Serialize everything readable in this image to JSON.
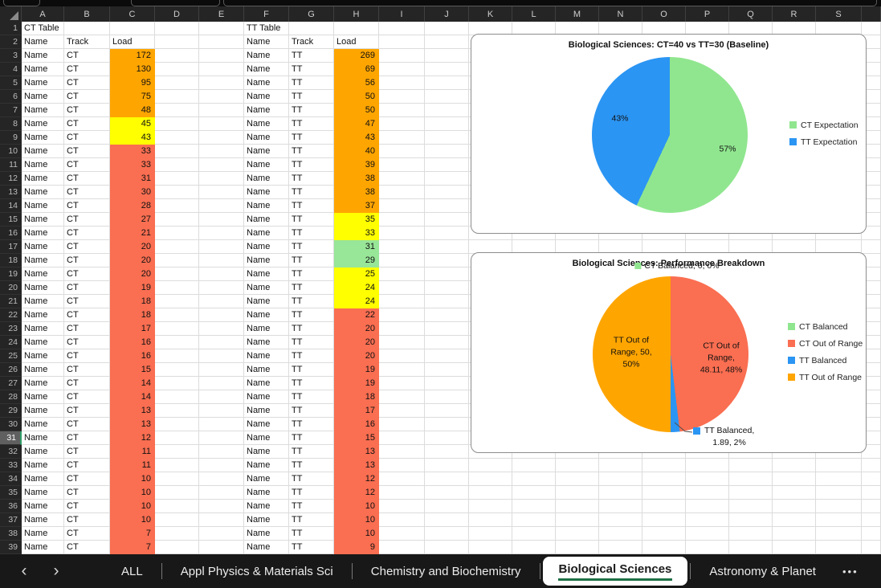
{
  "grid": {
    "column_letters": [
      "A",
      "B",
      "C",
      "D",
      "E",
      "F",
      "G",
      "H",
      "I",
      "J",
      "K",
      "L",
      "M",
      "N",
      "O",
      "P",
      "Q",
      "R",
      "S"
    ],
    "row_count": 39,
    "selected_row": 31,
    "ct_table": {
      "title": "CT Table",
      "col_headers": [
        "Name",
        "Track",
        "Load"
      ],
      "name_value": "Name",
      "track_value": "CT",
      "loads": [
        172,
        130,
        95,
        75,
        48,
        45,
        43,
        33,
        33,
        31,
        30,
        28,
        27,
        21,
        20,
        20,
        20,
        19,
        18,
        18,
        17,
        16,
        16,
        15,
        14,
        14,
        13,
        13,
        12,
        11,
        11,
        10,
        10,
        10,
        10,
        7,
        7
      ],
      "fills": [
        "o",
        "o",
        "o",
        "o",
        "o",
        "y",
        "y",
        "r",
        "r",
        "r",
        "r",
        "r",
        "r",
        "r",
        "r",
        "r",
        "r",
        "r",
        "r",
        "r",
        "r",
        "r",
        "r",
        "r",
        "r",
        "r",
        "r",
        "r",
        "r",
        "r",
        "r",
        "r",
        "r",
        "r",
        "r",
        "r",
        "r"
      ]
    },
    "tt_table": {
      "title": "TT Table",
      "col_headers": [
        "Name",
        "Track",
        "Load"
      ],
      "name_value": "Name",
      "track_value": "TT",
      "loads": [
        269,
        69,
        56,
        50,
        50,
        47,
        43,
        40,
        39,
        38,
        38,
        37,
        35,
        33,
        31,
        29,
        25,
        24,
        24,
        22,
        20,
        20,
        20,
        19,
        19,
        18,
        17,
        16,
        15,
        13,
        13,
        12,
        12,
        10,
        10,
        10,
        9
      ],
      "fills": [
        "o",
        "o",
        "o",
        "o",
        "o",
        "o",
        "o",
        "o",
        "o",
        "o",
        "o",
        "o",
        "y",
        "y",
        "g",
        "g",
        "y",
        "y",
        "y",
        "r",
        "r",
        "r",
        "r",
        "r",
        "r",
        "r",
        "r",
        "r",
        "r",
        "r",
        "r",
        "r",
        "r",
        "r",
        "r",
        "r",
        "r"
      ]
    }
  },
  "fill_colors": {
    "o": "#FFA500",
    "y": "#FFFF00",
    "r": "#FA6E51",
    "g": "#98E698"
  },
  "chart_data": [
    {
      "type": "pie",
      "title": "Biological Sciences: CT=40 vs TT=30 (Baseline)",
      "legend_position": "right",
      "slices": [
        {
          "label": "CT Expectation",
          "value": 57,
          "pct_label": "57%",
          "color": "#90E68F"
        },
        {
          "label": "TT Expectation",
          "value": 43,
          "pct_label": "43%",
          "color": "#2B95F3"
        }
      ]
    },
    {
      "type": "pie",
      "title": "Biological Sciences: Performance Breakdown",
      "legend_position": "right",
      "slices": [
        {
          "label": "CT Balanced",
          "value": 0,
          "data_label": "CT Balanced, 0, 0%",
          "color": "#90E68F"
        },
        {
          "label": "CT Out of Range",
          "value": 48.11,
          "data_label": "CT Out of\nRange,\n48.11, 48%",
          "color": "#FA6E51"
        },
        {
          "label": "TT Balanced",
          "value": 1.89,
          "data_label": "TT Balanced,\n1.89, 2%",
          "color": "#2B95F3"
        },
        {
          "label": "TT Out of Range",
          "value": 50,
          "data_label": "TT Out of\nRange, 50,\n50%",
          "color": "#FFA500"
        }
      ]
    }
  ],
  "tab_bar": {
    "nav_left": "‹",
    "nav_right": "›",
    "overflow_label": "•••",
    "accent_green": "#1E7145",
    "tabs": [
      {
        "label": "ALL",
        "active": false
      },
      {
        "label": "Appl Physics & Materials Sci",
        "active": false
      },
      {
        "label": "Chemistry and Biochemistry",
        "active": false
      },
      {
        "label": "Biological Sciences",
        "active": true
      },
      {
        "label": "Astronomy & Planet",
        "active": false
      }
    ]
  }
}
